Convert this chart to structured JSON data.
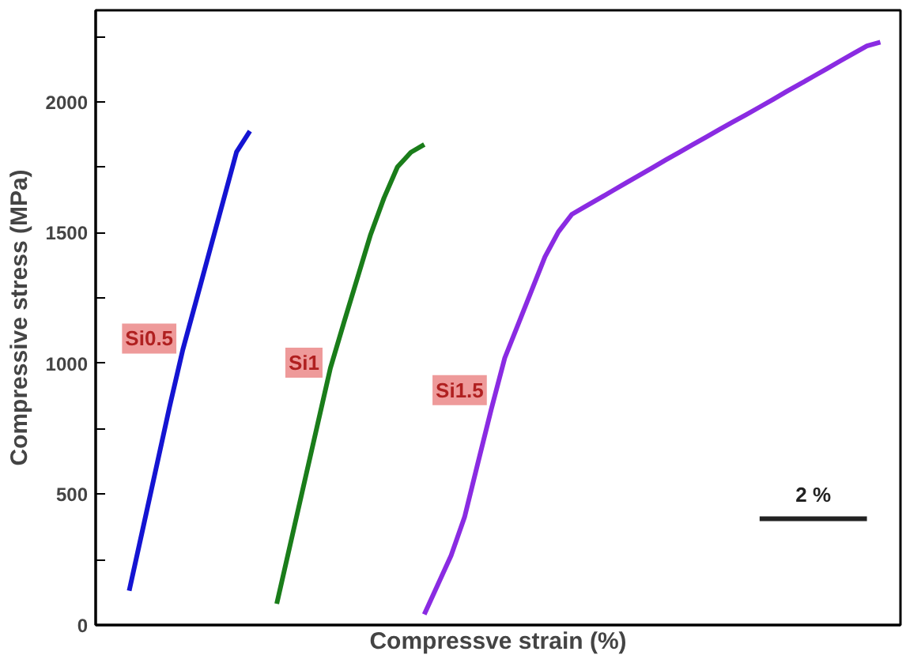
{
  "chart_data": {
    "type": "line",
    "xlabel": "Compressve strain (%)",
    "ylabel": "Compressive stress (MPa)",
    "categories": [
      null,
      null,
      null,
      null,
      null,
      null,
      null,
      null,
      null,
      null,
      null,
      null,
      null,
      null,
      null,
      null,
      null,
      null,
      null,
      null,
      null,
      null,
      null,
      null,
      null,
      null,
      null,
      null,
      null,
      null,
      null,
      null,
      null,
      null,
      null,
      null,
      null,
      null,
      null,
      null,
      null,
      null,
      null,
      null,
      null,
      null,
      null,
      null,
      null,
      null,
      null,
      null,
      null,
      null,
      null,
      null,
      null,
      null,
      null,
      null
    ],
    "ylim": [
      0,
      2350
    ],
    "yticks": [
      0,
      {
        "value": 250,
        "label": null
      },
      500,
      {
        "value": 750,
        "label": null
      },
      1000,
      {
        "value": 1250,
        "label": null
      },
      1500,
      {
        "value": 1750,
        "label": null
      },
      2000,
      {
        "value": 2250,
        "label": null
      }
    ],
    "tick_labels": "y",
    "marker": "none",
    "line_style": "solid",
    "series": [
      {
        "color": "#1414d2",
        "values": [
          null,
          null,
          131,
          364,
          598,
          832,
          1053,
          1241,
          1430,
          1619,
          1808,
          1888,
          null,
          null,
          null,
          null,
          null,
          null,
          null,
          null,
          null,
          null,
          null,
          null,
          null,
          null,
          null,
          null,
          null,
          null,
          null,
          null,
          null,
          null,
          null,
          null,
          null,
          null,
          null,
          null,
          null,
          null,
          null,
          null,
          null,
          null,
          null,
          null,
          null,
          null,
          null,
          null,
          null,
          null,
          null,
          null,
          null,
          null,
          null,
          null
        ]
      },
      {
        "color": "#1a7d1a",
        "values": [
          null,
          null,
          null,
          null,
          null,
          null,
          null,
          null,
          null,
          null,
          null,
          null,
          null,
          81,
          306,
          532,
          757,
          982,
          1155,
          1324,
          1493,
          1633,
          1751,
          1807,
          1837,
          null,
          null,
          null,
          null,
          null,
          null,
          null,
          null,
          null,
          null,
          null,
          null,
          null,
          null,
          null,
          null,
          null,
          null,
          null,
          null,
          null,
          null,
          null,
          null,
          null,
          null,
          null,
          null,
          null,
          null,
          null,
          null,
          null,
          null,
          null
        ]
      },
      {
        "color": "#8a2be2",
        "values": [
          null,
          null,
          null,
          null,
          null,
          null,
          null,
          null,
          null,
          null,
          null,
          null,
          null,
          null,
          null,
          null,
          null,
          null,
          null,
          null,
          null,
          null,
          null,
          null,
          41,
          153,
          266,
          412,
          620,
          826,
          1021,
          1150,
          1279,
          1408,
          1503,
          1570,
          1600,
          1629,
          1659,
          1689,
          1718,
          1748,
          1778,
          1807,
          1836,
          1865,
          1894,
          1923,
          1951,
          1980,
          2009,
          2039,
          2068,
          2097,
          2126,
          2156,
          2185,
          2214,
          2228,
          null
        ]
      },
      {
        "color": "#222222",
        "values": [
          null,
          null,
          null,
          null,
          null,
          null,
          null,
          null,
          null,
          null,
          null,
          null,
          null,
          null,
          null,
          null,
          null,
          null,
          null,
          null,
          null,
          null,
          null,
          null,
          null,
          null,
          null,
          null,
          null,
          null,
          null,
          null,
          null,
          null,
          null,
          null,
          null,
          null,
          null,
          null,
          null,
          null,
          null,
          null,
          null,
          null,
          null,
          null,
          null,
          406,
          406,
          406,
          406,
          406,
          406,
          406,
          406,
          406,
          null,
          null
        ]
      }
    ],
    "annotations": [
      {
        "text": "Si0.5",
        "y": 1095
      },
      {
        "text": "Si1",
        "y": 1003
      },
      {
        "text": "Si1.5",
        "y": 898
      },
      "2 %"
    ]
  }
}
